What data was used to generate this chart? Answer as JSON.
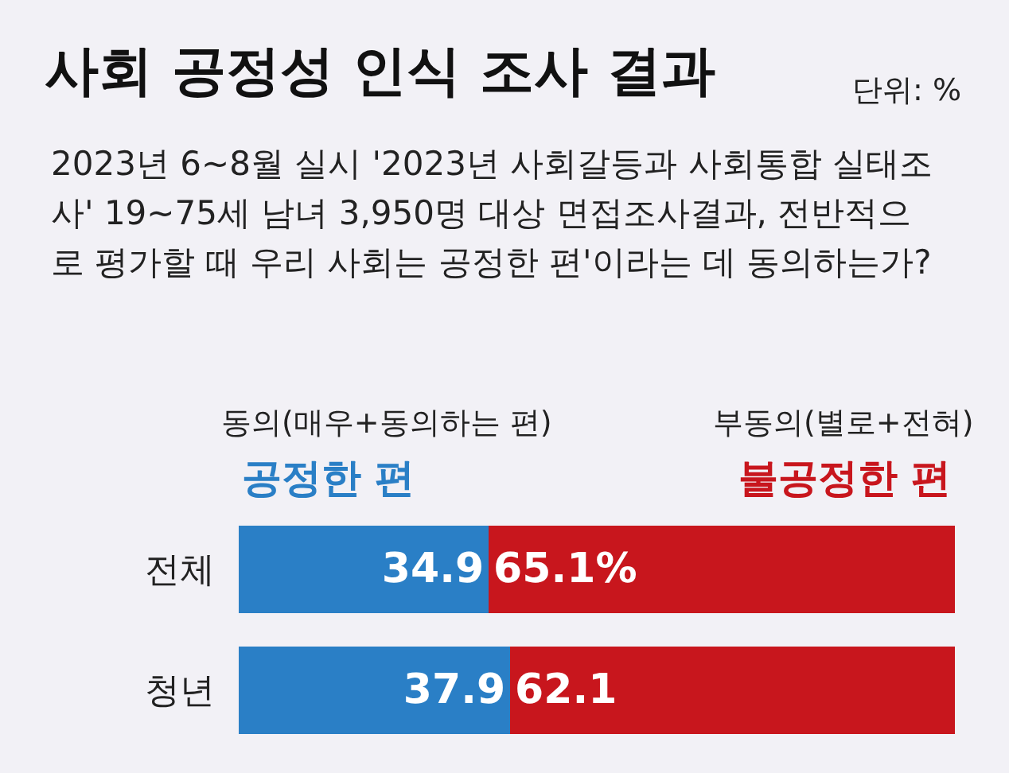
{
  "chart_data": {
    "type": "bar",
    "orientation": "horizontal",
    "stacked": true,
    "title": "사회 공정성 인식 조사 결과",
    "subtitle": "2023년 6~8월 실시 '2023년 사회갈등과 사회통합 실태조사' 19~75세 남녀 3,950명 대상 면접조사결과, 전반적으로 평가할 때 우리 사회는 공정한 편'이라는 데 동의하는가?",
    "annotations": [
      "단위: %",
      "동의(매우+동의하는 편)",
      "부동의(별로+전혀)"
    ],
    "categories": [
      "전체",
      "청년"
    ],
    "series": [
      {
        "name": "공정한 편",
        "color": "#2a7fc6",
        "values": [
          34.9,
          37.9
        ],
        "value_labels": [
          "34.9",
          "37.9"
        ]
      },
      {
        "name": "불공정한 편",
        "color": "#c8161d",
        "values": [
          65.1,
          62.1
        ],
        "value_labels": [
          "65.1%",
          "62.1"
        ]
      }
    ],
    "xlim": [
      0,
      100
    ],
    "tick_labels": "y",
    "legend": false
  }
}
